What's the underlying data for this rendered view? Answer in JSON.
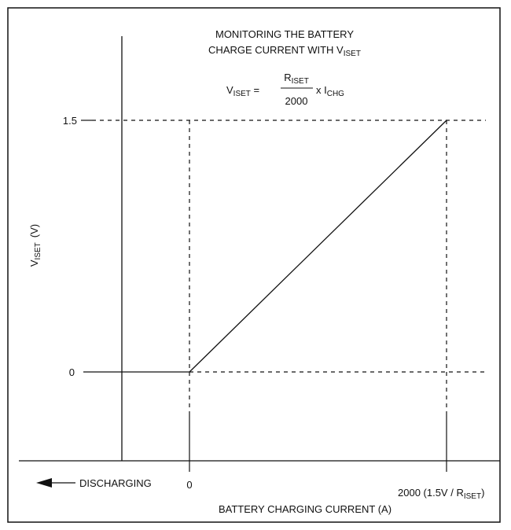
{
  "chart_data": {
    "type": "line",
    "title_line1": "MONITORING THE BATTERY",
    "title_line2_prefix": "CHARGE CURRENT WITH V",
    "title_line2_sub": "ISET",
    "formula": {
      "lhs": "V",
      "lhs_sub": "ISET",
      "equals": " =",
      "numerator": "R",
      "numerator_sub": "ISET",
      "denominator": "2000",
      "times": "x I",
      "times_sub": "CHG"
    },
    "ylabel": {
      "main": "V",
      "sub": "ISET",
      "unit": "(V)"
    },
    "xlabel": "BATTERY CHARGING CURRENT (A)",
    "y_ticks": [
      "1.5",
      "0"
    ],
    "x_tick_zero": "0",
    "x_tick_max": {
      "prefix": "2000 (1.5V / R",
      "sub": "ISET",
      "suffix": ")"
    },
    "discharging_label": "DISCHARGING",
    "x_range": [
      -1,
      2000
    ],
    "y_range": [
      0,
      1.5
    ],
    "series": [
      {
        "x": [
          -1,
          0
        ],
        "y": [
          0,
          0
        ]
      },
      {
        "x": [
          0,
          2000
        ],
        "y": [
          0,
          1.5
        ]
      }
    ],
    "grid": "dashed reference lines at x = 0, x = max, y = 0, y = 1.5"
  }
}
